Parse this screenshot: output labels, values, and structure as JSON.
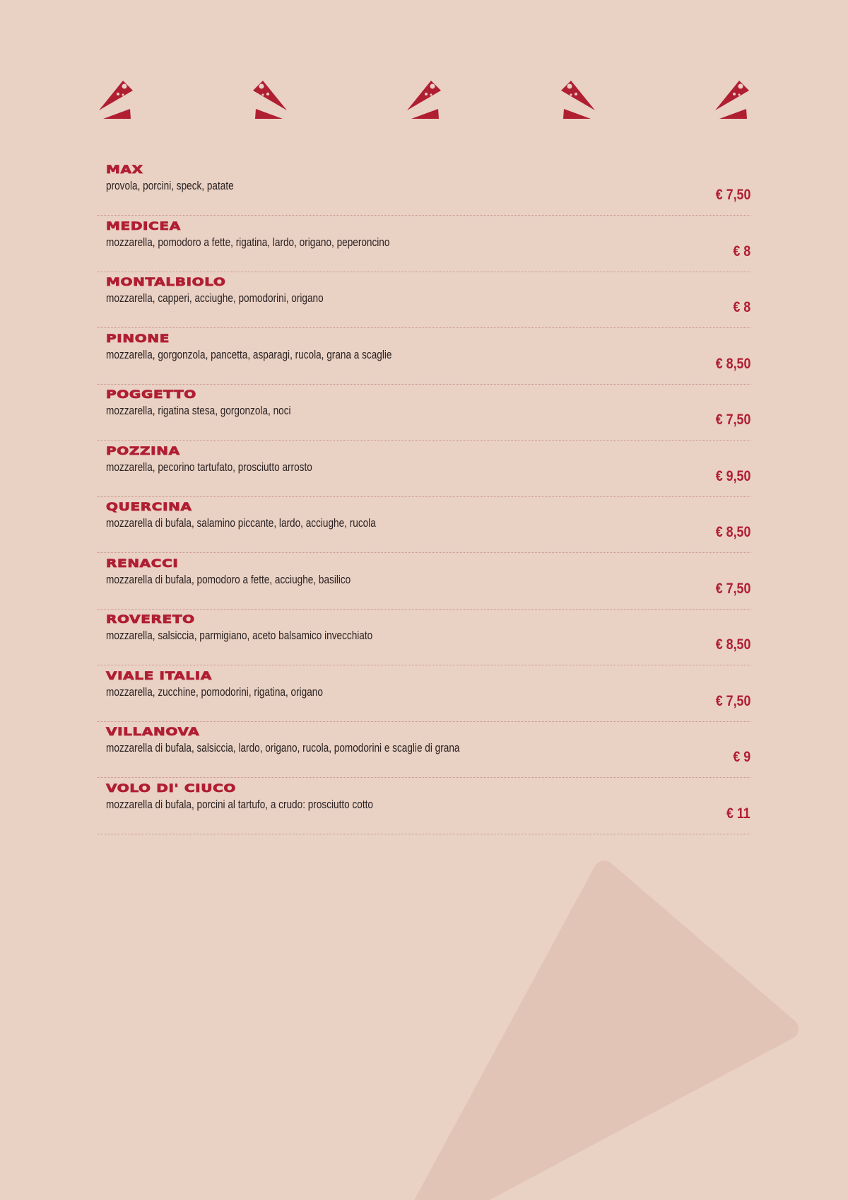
{
  "colors": {
    "background": "#e9d1c4",
    "accent": "#b01e32",
    "text": "#2a2222",
    "decor": "#e2c4b6"
  },
  "header_icons": [
    "pizza-slice-icon",
    "pizza-slice-icon",
    "pizza-slice-icon",
    "pizza-slice-icon",
    "pizza-slice-icon"
  ],
  "items": [
    {
      "name": "MAX",
      "desc": "provola, porcini, speck, patate",
      "price": "€ 7,50"
    },
    {
      "name": "MEDICEA",
      "desc": "mozzarella, pomodoro a fette, rigatina, lardo, origano, peperoncino",
      "price": "€ 8"
    },
    {
      "name": "MONTALBIOLO",
      "desc": "mozzarella, capperi, acciughe, pomodorini, origano",
      "price": "€ 8"
    },
    {
      "name": "PINONE",
      "desc": "mozzarella, gorgonzola, pancetta, asparagi, rucola, grana a scaglie",
      "price": "€ 8,50"
    },
    {
      "name": "POGGETTO",
      "desc": "mozzarella, rigatina stesa, gorgonzola, noci",
      "price": "€ 7,50"
    },
    {
      "name": "POZZINA",
      "desc": "mozzarella, pecorino tartufato, prosciutto arrosto",
      "price": "€ 9,50"
    },
    {
      "name": "QUERCINA",
      "desc": "mozzarella di bufala, salamino piccante, lardo, acciughe, rucola",
      "price": "€ 8,50"
    },
    {
      "name": "RENACCI",
      "desc": "mozzarella di bufala, pomodoro a fette, acciughe, basilico",
      "price": "€ 7,50"
    },
    {
      "name": "ROVERETO",
      "desc": "mozzarella, salsiccia, parmigiano, aceto balsamico invecchiato",
      "price": "€ 8,50"
    },
    {
      "name": "VIALE ITALIA",
      "desc": "mozzarella, zucchine, pomodorini, rigatina, origano",
      "price": "€ 7,50"
    },
    {
      "name": "VILLANOVA",
      "desc": "mozzarella di bufala, salsiccia, lardo, origano, rucola, pomodorini e scaglie di grana",
      "price": "€ 9"
    },
    {
      "name": "VOLO DI' CIUCO",
      "desc": "mozzarella di bufala, porcini al tartufo, a crudo: prosciutto cotto",
      "price": "€ 11"
    }
  ]
}
